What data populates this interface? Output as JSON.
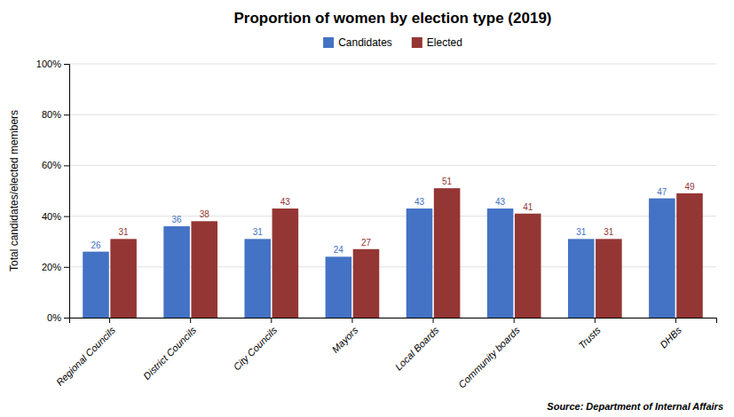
{
  "chart_data": {
    "type": "bar",
    "title": "Proportion of women by election type (2019)",
    "categories": [
      "Regional Councils",
      "District Councils",
      "City Councils",
      "Mayors",
      "Local Boards",
      "Community boards",
      "Trusts",
      "DHBs"
    ],
    "series": [
      {
        "name": "Candidates",
        "color": "#4472C4",
        "values": [
          26,
          36,
          31,
          24,
          43,
          43,
          31,
          47
        ]
      },
      {
        "name": "Elected",
        "color": "#943634",
        "values": [
          31,
          38,
          43,
          27,
          51,
          41,
          31,
          49
        ]
      }
    ],
    "ylabel": "Total candidates/elected members",
    "ylim": [
      0,
      100
    ],
    "yticks": [
      {
        "value": 0,
        "label": "0%"
      },
      {
        "value": 20,
        "label": "20%"
      },
      {
        "value": 40,
        "label": "40%"
      },
      {
        "value": 60,
        "label": "60%"
      },
      {
        "value": 80,
        "label": "80%"
      },
      {
        "value": 100,
        "label": "100%"
      }
    ],
    "grid": true,
    "legend": "top",
    "data_labels": true,
    "annotations": [
      "Source: Department of Internal Affairs"
    ]
  }
}
